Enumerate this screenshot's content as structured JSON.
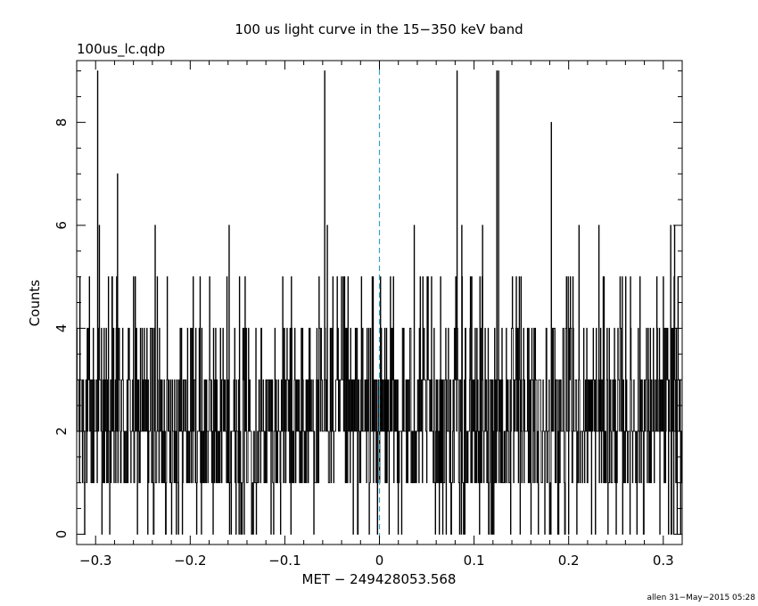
{
  "chart_data": {
    "type": "line",
    "style": "step histogram",
    "title": "100 us light curve in the 15−350 keV band",
    "subtitle": "100us_lc.qdp",
    "xlabel": "MET − 249428053.568",
    "ylabel": "Counts",
    "footer": "allen 31−May−2015 05:28",
    "xlim": [
      -0.32,
      0.32
    ],
    "ylim": [
      -0.2,
      9.2
    ],
    "x_ticks": [
      -0.3,
      -0.2,
      -0.1,
      0,
      0.1,
      0.2,
      0.3
    ],
    "x_tick_labels": [
      "−0.3",
      "−0.2",
      "−0.1",
      "0",
      "0.1",
      "0.2",
      "0.3"
    ],
    "y_ticks": [
      0,
      2,
      4,
      6,
      8
    ],
    "y_tick_labels": [
      "0",
      "2",
      "4",
      "6",
      "8"
    ],
    "bin_width_s": 0.0001,
    "marker_line": {
      "x": 0,
      "color": "#3a9ec9",
      "style": "dashed"
    },
    "line_color": "#000000",
    "series": [
      {
        "notable_peaks": [
          {
            "x": -0.298,
            "y": 9
          },
          {
            "x": -0.296,
            "y": 6
          },
          {
            "x": -0.277,
            "y": 7
          },
          {
            "x": -0.237,
            "y": 6
          },
          {
            "x": -0.159,
            "y": 6
          },
          {
            "x": -0.058,
            "y": 9
          },
          {
            "x": -0.055,
            "y": 6
          },
          {
            "x": 0.037,
            "y": 6
          },
          {
            "x": 0.082,
            "y": 9
          },
          {
            "x": 0.087,
            "y": 6
          },
          {
            "x": 0.109,
            "y": 6
          },
          {
            "x": 0.124,
            "y": 9
          },
          {
            "x": 0.126,
            "y": 9
          },
          {
            "x": 0.182,
            "y": 8
          },
          {
            "x": 0.211,
            "y": 6
          },
          {
            "x": 0.232,
            "y": 6
          },
          {
            "x": 0.308,
            "y": 6
          },
          {
            "x": 0.312,
            "y": 6
          }
        ],
        "level_probabilities": {
          "0": 0.06,
          "1": 0.22,
          "2": 0.33,
          "3": 0.25,
          "4": 0.1,
          "5": 0.04
        }
      }
    ]
  }
}
